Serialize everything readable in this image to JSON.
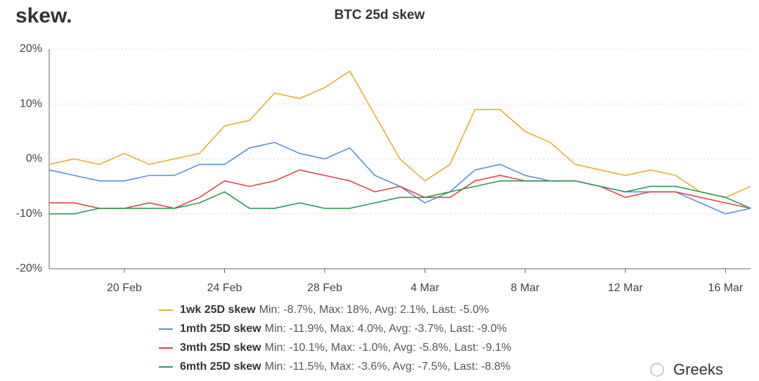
{
  "logo": "skew.",
  "watermark": "Greeks",
  "chart_data": {
    "type": "line",
    "title": "BTC 25d skew",
    "categories": [
      null,
      null,
      null,
      "20 Feb",
      null,
      null,
      null,
      "24 Feb",
      null,
      null,
      null,
      "28 Feb",
      null,
      null,
      null,
      "4 Mar",
      null,
      null,
      null,
      "8 Mar",
      null,
      null,
      null,
      "12 Mar",
      null,
      null,
      null,
      "16 Mar",
      null
    ],
    "ylim": [
      -20,
      20
    ],
    "yticks": [
      {
        "value": -20,
        "label": "-20%"
      },
      {
        "value": -10,
        "label": "-10%"
      },
      {
        "value": 0,
        "label": "0%"
      },
      {
        "value": 10,
        "label": "10%"
      },
      {
        "value": 20,
        "label": "20%"
      }
    ],
    "grid": true,
    "series": [
      {
        "name": "1wk 25D skew",
        "stats": "Min: -8.7%, Max: 18%, Avg: 2.1%, Last: -5.0%",
        "color": "#e8ae2e",
        "values": [
          -1,
          0,
          -1,
          1,
          -1,
          0,
          1,
          6,
          7,
          12,
          11,
          13,
          16,
          8,
          0,
          -4,
          -1,
          9,
          9,
          5,
          3,
          -1,
          -2,
          -3,
          -2,
          -3,
          -6,
          -7,
          -5
        ]
      },
      {
        "name": "1mth 25D skew",
        "stats": "Min: -11.9%, Max: 4.0%, Avg: -3.7%, Last: -9.0%",
        "color": "#5b8fd8",
        "values": [
          -2,
          -3,
          -4,
          -4,
          -3,
          -3,
          -1,
          -1,
          2,
          3,
          1,
          0,
          2,
          -3,
          -5,
          -8,
          -6,
          -2,
          -1,
          -3,
          -4,
          -4,
          -5,
          -6,
          -6,
          -6,
          -8,
          -10,
          -9
        ]
      },
      {
        "name": "3mth 25D skew",
        "stats": "Min: -10.1%, Max: -1.0%, Avg: -5.8%, Last: -9.1%",
        "color": "#e0454a",
        "values": [
          -8,
          -8,
          -9,
          -9,
          -8,
          -9,
          -7,
          -4,
          -5,
          -4,
          -2,
          -3,
          -4,
          -6,
          -5,
          -7,
          -7,
          -4,
          -3,
          -4,
          -4,
          -4,
          -5,
          -7,
          -6,
          -6,
          -7,
          -8,
          -9
        ]
      },
      {
        "name": "6mth 25D skew",
        "stats": "Min: -11.5%, Max: -3.6%, Avg: -7.5%, Last: -8.8%",
        "color": "#2e9a55",
        "values": [
          -10,
          -10,
          -9,
          -9,
          -9,
          -9,
          -8,
          -6,
          -9,
          -9,
          -8,
          -9,
          -9,
          -8,
          -7,
          -7,
          -6,
          -5,
          -4,
          -4,
          -4,
          -4,
          -5,
          -6,
          -5,
          -5,
          -6,
          -7,
          -9
        ]
      }
    ]
  }
}
